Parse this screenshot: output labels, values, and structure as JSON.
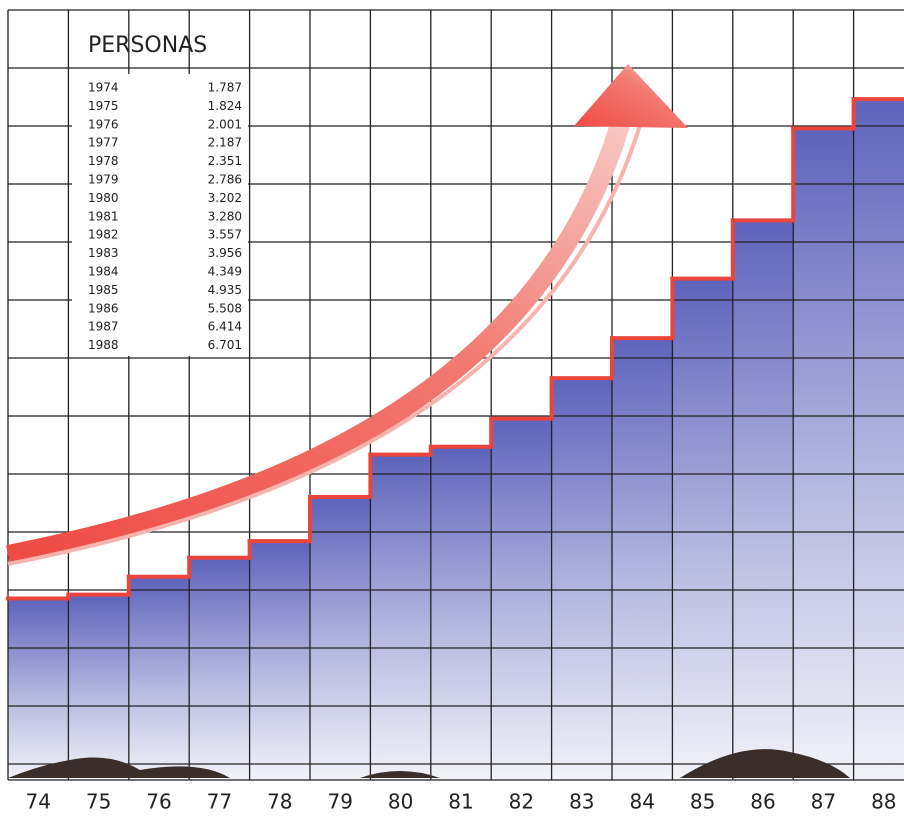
{
  "chart_data": {
    "type": "step",
    "title": "PERSONAS",
    "categories": [
      "74",
      "75",
      "76",
      "77",
      "78",
      "79",
      "80",
      "81",
      "82",
      "83",
      "84",
      "85",
      "86",
      "87",
      "88"
    ],
    "years": [
      "1974",
      "1975",
      "1976",
      "1977",
      "1978",
      "1979",
      "1980",
      "1981",
      "1982",
      "1983",
      "1984",
      "1985",
      "1986",
      "1987",
      "1988"
    ],
    "values": [
      1787,
      1824,
      2001,
      2187,
      2351,
      2786,
      3202,
      3280,
      3557,
      3956,
      4349,
      4935,
      5508,
      6414,
      6701
    ],
    "value_labels": [
      "1.787",
      "1.824",
      "2.001",
      "2.187",
      "2.351",
      "2.786",
      "3.202",
      "3.280",
      "3.557",
      "3.956",
      "4.349",
      "4.935",
      "5.508",
      "6.414",
      "6.701"
    ],
    "color": "#e8453c"
  }
}
